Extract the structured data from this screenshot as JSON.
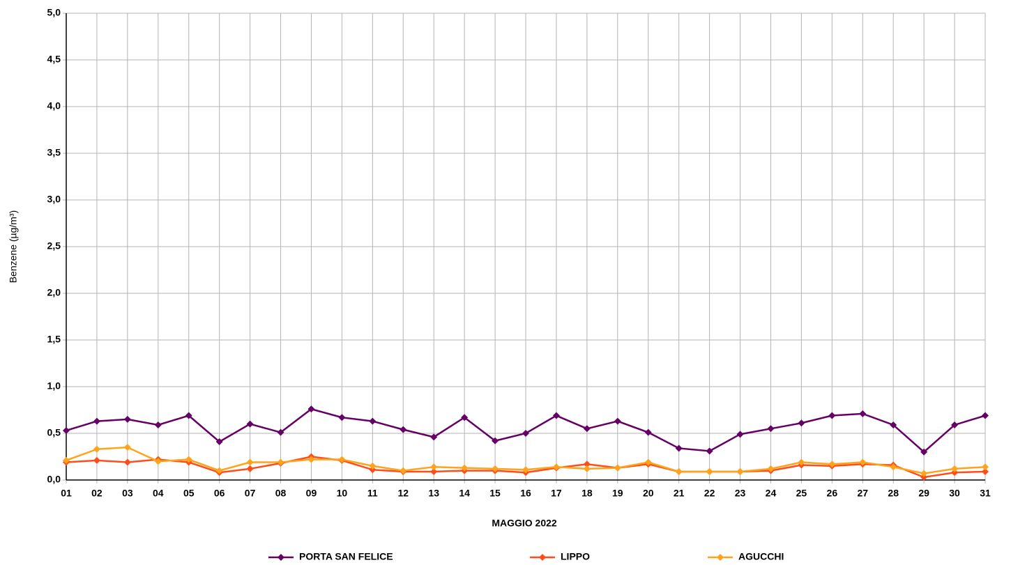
{
  "chart_data": {
    "type": "line",
    "x_label": "MAGGIO 2022",
    "y_label": "Benzene (µg/m³)",
    "categories": [
      "01",
      "02",
      "03",
      "04",
      "05",
      "06",
      "07",
      "08",
      "09",
      "10",
      "11",
      "12",
      "13",
      "14",
      "15",
      "16",
      "17",
      "18",
      "19",
      "20",
      "21",
      "22",
      "23",
      "24",
      "25",
      "26",
      "27",
      "28",
      "29",
      "30",
      "31"
    ],
    "series": [
      {
        "name": "PORTA SAN FELICE",
        "color": "#660066",
        "values": [
          0.53,
          0.63,
          0.65,
          0.59,
          0.69,
          0.41,
          0.6,
          0.51,
          0.76,
          0.67,
          0.63,
          0.54,
          0.46,
          0.67,
          0.42,
          0.5,
          0.69,
          0.55,
          0.63,
          0.51,
          0.34,
          0.31,
          0.49,
          0.55,
          0.61,
          0.69,
          0.71,
          0.59,
          0.3,
          0.59,
          0.69
        ]
      },
      {
        "name": "LIPPO",
        "color": "#ff4d1a",
        "values": [
          0.19,
          0.21,
          0.19,
          0.22,
          0.19,
          0.08,
          0.12,
          0.18,
          0.25,
          0.21,
          0.11,
          0.09,
          0.09,
          0.1,
          0.1,
          0.08,
          0.13,
          0.17,
          0.13,
          0.17,
          0.09,
          0.09,
          0.09,
          0.1,
          0.16,
          0.15,
          0.17,
          0.16,
          0.03,
          0.08,
          0.09
        ]
      },
      {
        "name": "AGUCCHI",
        "color": "#ffa31a",
        "values": [
          0.21,
          0.33,
          0.35,
          0.2,
          0.22,
          0.1,
          0.19,
          0.19,
          0.22,
          0.22,
          0.15,
          0.1,
          0.14,
          0.13,
          0.12,
          0.11,
          0.14,
          0.12,
          0.13,
          0.19,
          0.09,
          0.09,
          0.09,
          0.12,
          0.19,
          0.17,
          0.19,
          0.14,
          0.07,
          0.12,
          0.14
        ]
      }
    ],
    "ylim": [
      0,
      5
    ],
    "yticks": [
      {
        "value": 0,
        "label": "0,0"
      },
      {
        "value": 0.5,
        "label": "0,5"
      },
      {
        "value": 1,
        "label": "1,0"
      },
      {
        "value": 1.5,
        "label": "1,5"
      },
      {
        "value": 2,
        "label": "2,0"
      },
      {
        "value": 2.5,
        "label": "2,5"
      },
      {
        "value": 3,
        "label": "3,0"
      },
      {
        "value": 3.5,
        "label": "3,5"
      },
      {
        "value": 4,
        "label": "4,0"
      },
      {
        "value": 4.5,
        "label": "4,5"
      },
      {
        "value": 5,
        "label": "5,0"
      }
    ],
    "grid": true,
    "legend": "bottom"
  }
}
